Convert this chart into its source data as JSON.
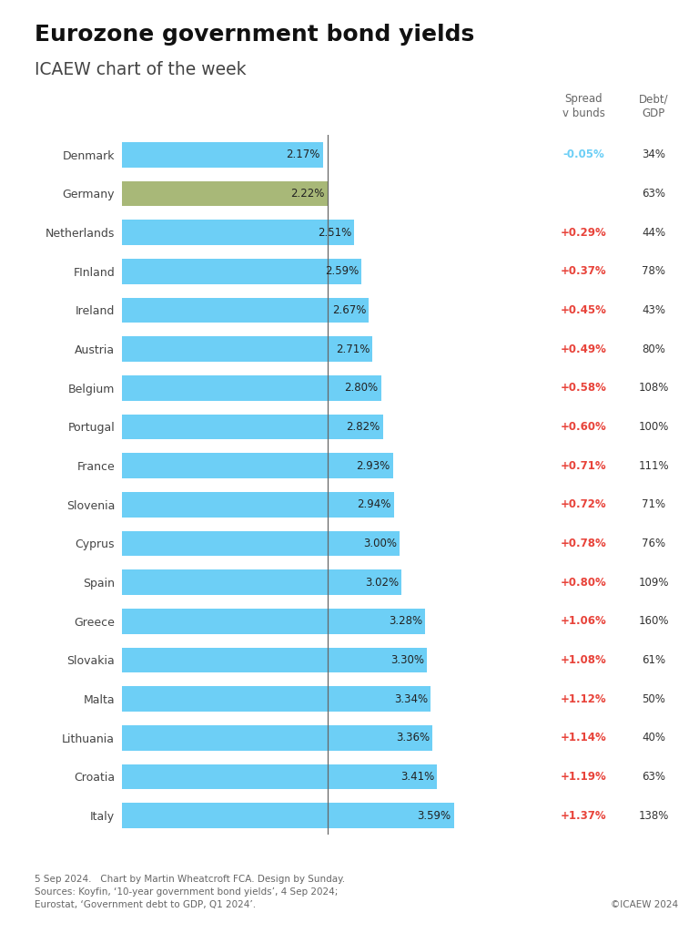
{
  "title": "Eurozone government bond yields",
  "subtitle": "ICAEW chart of the week",
  "countries": [
    "Denmark",
    "Germany",
    "Netherlands",
    "FInland",
    "Ireland",
    "Austria",
    "Belgium",
    "Portugal",
    "France",
    "Slovenia",
    "Cyprus",
    "Spain",
    "Greece",
    "Slovakia",
    "Malta",
    "Lithuania",
    "Croatia",
    "Italy"
  ],
  "yields": [
    2.17,
    2.22,
    2.51,
    2.59,
    2.67,
    2.71,
    2.8,
    2.82,
    2.93,
    2.94,
    3.0,
    3.02,
    3.28,
    3.3,
    3.34,
    3.36,
    3.41,
    3.59
  ],
  "yield_labels": [
    "2.17%",
    "2.22%",
    "2.51%",
    "2.59%",
    "2.67%",
    "2.71%",
    "2.80%",
    "2.82%",
    "2.93%",
    "2.94%",
    "3.00%",
    "3.02%",
    "3.28%",
    "3.30%",
    "3.34%",
    "3.36%",
    "3.41%",
    "3.59%"
  ],
  "spread_labels": [
    "-0.05%",
    "",
    "+0.29%",
    "+0.37%",
    "+0.45%",
    "+0.49%",
    "+0.58%",
    "+0.60%",
    "+0.71%",
    "+0.72%",
    "+0.78%",
    "+0.80%",
    "+1.06%",
    "+1.08%",
    "+1.12%",
    "+1.14%",
    "+1.19%",
    "+1.37%"
  ],
  "debt_gdp_labels": [
    "34%",
    "44%",
    "78%",
    "43%",
    "80%",
    "108%",
    "100%",
    "111%",
    "71%",
    "76%",
    "109%",
    "160%",
    "61%",
    "50%",
    "40%",
    "63%",
    "138%"
  ],
  "debt_gdp_labels_all": [
    "34%",
    "63%",
    "44%",
    "78%",
    "43%",
    "80%",
    "108%",
    "100%",
    "111%",
    "71%",
    "76%",
    "109%",
    "160%",
    "61%",
    "50%",
    "40%",
    "63%",
    "138%"
  ],
  "bar_colors": [
    "#6dcff6",
    "#a8b878",
    "#6dcff6",
    "#6dcff6",
    "#6dcff6",
    "#6dcff6",
    "#6dcff6",
    "#6dcff6",
    "#6dcff6",
    "#6dcff6",
    "#6dcff6",
    "#6dcff6",
    "#6dcff6",
    "#6dcff6",
    "#6dcff6",
    "#6dcff6",
    "#6dcff6",
    "#6dcff6"
  ],
  "spread_colors": [
    "#6dcff6",
    "#333333",
    "#e8433a",
    "#e8433a",
    "#e8433a",
    "#e8433a",
    "#e8433a",
    "#e8433a",
    "#e8433a",
    "#e8433a",
    "#e8433a",
    "#e8433a",
    "#e8433a",
    "#e8433a",
    "#e8433a",
    "#e8433a",
    "#e8433a",
    "#e8433a"
  ],
  "vline_x": 2.22,
  "col_header_spread": "Spread\nv bunds",
  "col_header_debt": "Debt/\nGDP",
  "footer_left": "5 Sep 2024.   Chart by Martin Wheatcroft FCA. Design by Sunday.\nSources: Koyfin, ‘10-year government bond yields’, 4 Sep 2024;\nEurostat, ‘Government debt to GDP, Q1 2024’.",
  "footer_right": "©ICAEW 2024",
  "bg_color": "#ffffff",
  "bar_height": 0.65,
  "xlim": [
    0,
    4.2
  ]
}
